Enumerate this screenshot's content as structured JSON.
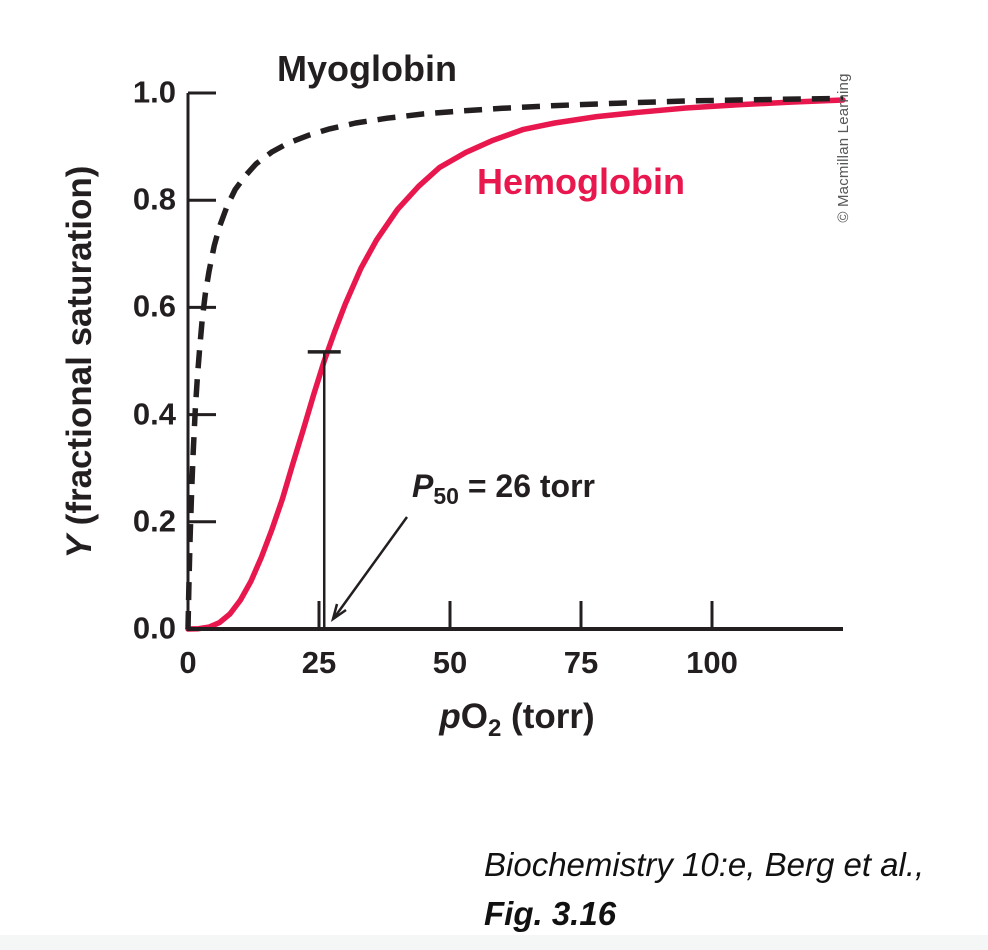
{
  "figure": {
    "copyright": "© Macmillan Learning",
    "caption_line1": "Biochemistry 10:e, Berg et al.,",
    "caption_line2": "Fig. 3.16"
  },
  "chart_data": {
    "type": "line",
    "title": "",
    "xlabel": {
      "plain": "pO2 (torr)",
      "italic_part": "p",
      "main_part": "O",
      "sub_part": "2",
      "suffix_part": " (torr)"
    },
    "ylabel": {
      "plain": "Y (fractional saturation)",
      "italic_part": "Y",
      "suffix_part": " (fractional saturation)"
    },
    "xlim": [
      0,
      125
    ],
    "ylim": [
      0,
      1
    ],
    "grid": false,
    "legend_position": "inline-curve-labels",
    "x_ticks": [
      {
        "value": 0,
        "label": "0"
      },
      {
        "value": 25,
        "label": "25"
      },
      {
        "value": 50,
        "label": "50"
      },
      {
        "value": 75,
        "label": "75"
      },
      {
        "value": 100,
        "label": "100"
      }
    ],
    "y_ticks": [
      {
        "value": 0.0,
        "label": "0.0"
      },
      {
        "value": 0.2,
        "label": "0.2"
      },
      {
        "value": 0.4,
        "label": "0.4"
      },
      {
        "value": 0.6,
        "label": "0.6"
      },
      {
        "value": 0.8,
        "label": "0.8"
      },
      {
        "value": 1.0,
        "label": "1.0"
      }
    ],
    "series": [
      {
        "name": "Hemoglobin",
        "style": "solid",
        "color": "#e8174e",
        "shape": "sigmoidal (cooperative O2 binding, Hill n ≈ 3, P50 = 26 torr)",
        "points": [
          [
            0,
            0
          ],
          [
            2,
            0.0005
          ],
          [
            4,
            0.0036
          ],
          [
            6,
            0.012
          ],
          [
            8,
            0.028
          ],
          [
            10,
            0.054
          ],
          [
            12,
            0.089
          ],
          [
            14,
            0.134
          ],
          [
            16,
            0.185
          ],
          [
            18,
            0.242
          ],
          [
            20,
            0.308
          ],
          [
            22,
            0.372
          ],
          [
            24,
            0.438
          ],
          [
            26,
            0.5
          ],
          [
            28,
            0.555
          ],
          [
            30,
            0.606
          ],
          [
            33,
            0.673
          ],
          [
            36,
            0.726
          ],
          [
            40,
            0.783
          ],
          [
            44,
            0.826
          ],
          [
            48,
            0.861
          ],
          [
            53,
            0.889
          ],
          [
            58,
            0.911
          ],
          [
            64,
            0.932
          ],
          [
            70,
            0.944
          ],
          [
            78,
            0.956
          ],
          [
            86,
            0.964
          ],
          [
            95,
            0.972
          ],
          [
            105,
            0.978
          ],
          [
            115,
            0.983
          ],
          [
            125,
            0.987
          ]
        ]
      },
      {
        "name": "Myoglobin",
        "style": "dashed",
        "color": "#231f20",
        "shape": "hyperbolic (simple O2 binding, K ≈ 2 torr)",
        "points": [
          [
            0,
            0
          ],
          [
            0.2,
            0.09
          ],
          [
            0.4,
            0.17
          ],
          [
            0.7,
            0.26
          ],
          [
            1,
            0.33
          ],
          [
            1.4,
            0.41
          ],
          [
            1.8,
            0.47
          ],
          [
            2.2,
            0.52
          ],
          [
            2.7,
            0.575
          ],
          [
            3.3,
            0.625
          ],
          [
            4,
            0.667
          ],
          [
            5,
            0.715
          ],
          [
            6,
            0.75
          ],
          [
            7.5,
            0.79
          ],
          [
            9,
            0.82
          ],
          [
            11,
            0.846
          ],
          [
            13,
            0.868
          ],
          [
            16,
            0.89
          ],
          [
            19,
            0.906
          ],
          [
            23,
            0.921
          ],
          [
            27,
            0.933
          ],
          [
            32,
            0.944
          ],
          [
            38,
            0.953
          ],
          [
            45,
            0.961
          ],
          [
            52,
            0.9665
          ],
          [
            60,
            0.9715
          ],
          [
            70,
            0.9765
          ],
          [
            82,
            0.981
          ],
          [
            95,
            0.985
          ],
          [
            108,
            0.9875
          ],
          [
            125,
            0.99
          ]
        ]
      }
    ],
    "annotation": {
      "label_italic": "P",
      "label_sub": "50",
      "label_rest": " = 26 torr",
      "p50_torr": 26,
      "marker_top_y": 0.517
    },
    "colors": {
      "axis_black": "#231f20",
      "hemoglobin_red": "#e8174e",
      "copyright_gray": "#57585a"
    }
  }
}
